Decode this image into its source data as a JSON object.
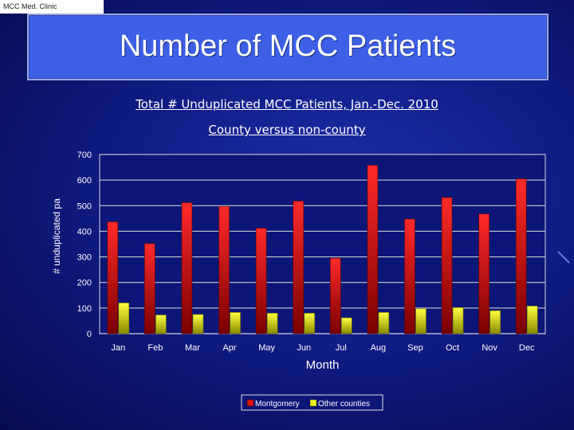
{
  "slide": {
    "corner_label": "MCC Med. Clinic",
    "title": "Number of MCC Patients",
    "subtitle1": "Total # Unduplicated MCC Patients, Jan.-Dec. 2010",
    "subtitle2": "County versus non-county"
  },
  "colors": {
    "montgomery": "#e01010",
    "other_counties": "#f0f020",
    "plot_bg": "#0c1678"
  },
  "chart_data": {
    "type": "bar",
    "title": "Total # Unduplicated MCC Patients, Jan.-Dec. 2010",
    "subtitle": "County versus non-county",
    "xlabel": "Month",
    "ylabel": "# unduplicated pa",
    "ylim": [
      0,
      700
    ],
    "yticks": [
      0,
      100,
      200,
      300,
      400,
      500,
      600,
      700
    ],
    "categories": [
      "Jan",
      "Feb",
      "Mar",
      "Apr",
      "May",
      "Jun",
      "Jul",
      "Aug",
      "Sep",
      "Oct",
      "Nov",
      "Dec"
    ],
    "series": [
      {
        "name": "Montgomery",
        "values": [
          437,
          352,
          512,
          497,
          412,
          518,
          295,
          658,
          448,
          532,
          468,
          605
        ]
      },
      {
        "name": "Other counties",
        "values": [
          120,
          73,
          75,
          83,
          80,
          80,
          62,
          83,
          97,
          102,
          90,
          108
        ]
      }
    ],
    "legend": "bottom-center",
    "grid": true
  }
}
